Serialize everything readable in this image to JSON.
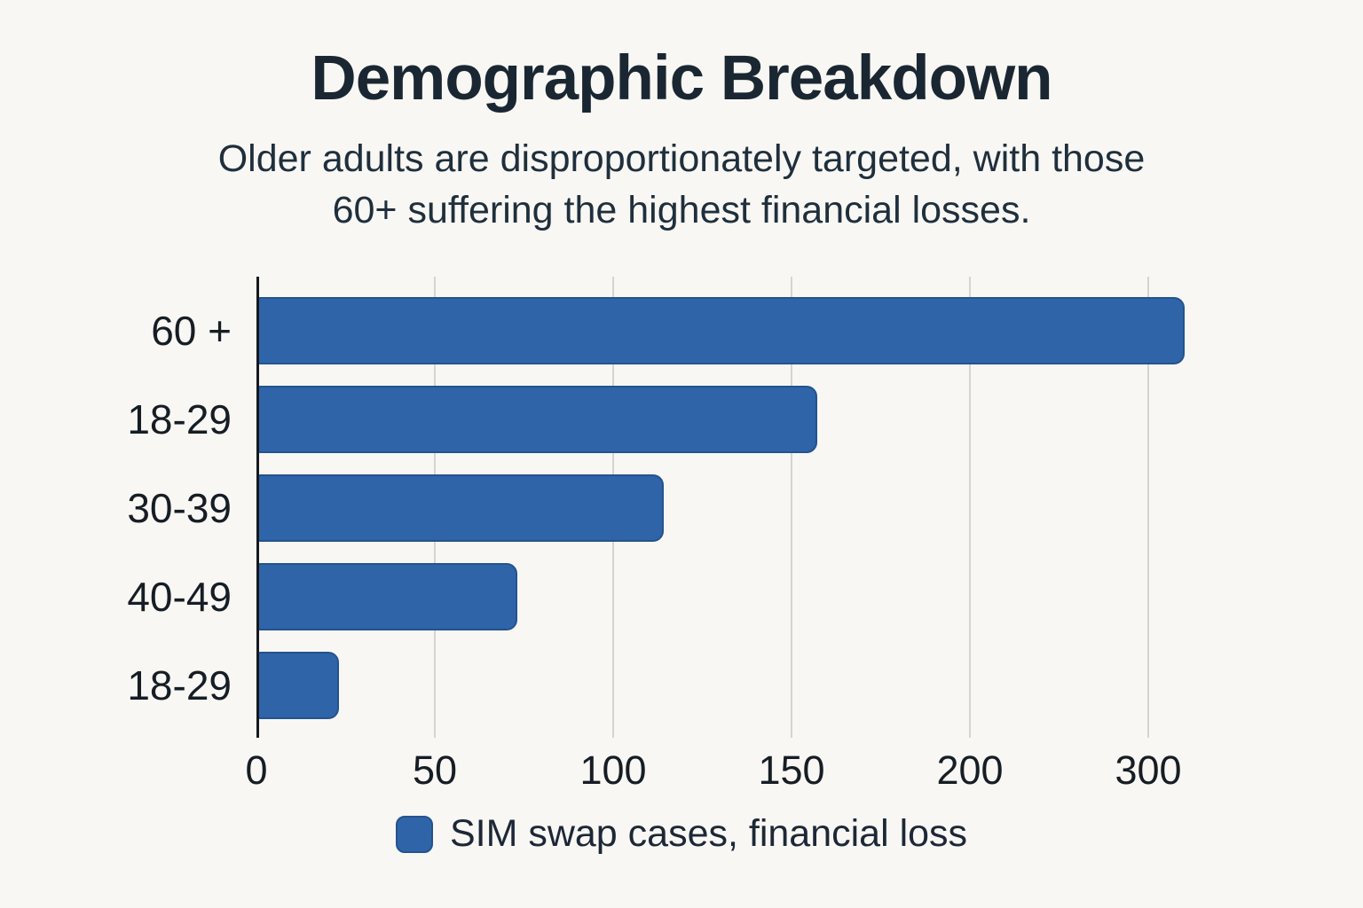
{
  "page": {
    "background_color": "#f8f7f4"
  },
  "header": {
    "title": "Demographic Breakdown",
    "subtitle_lines": [
      "Older adults are disproportionately targeted, with those",
      "60+ suffering the highest financial losses."
    ]
  },
  "legend": {
    "label": "SIM swap cases, financial loss",
    "swatch_color": "#2f64a8",
    "swatch_border_color": "#24538f"
  },
  "colors": {
    "bar_fill": "#2f64a8",
    "bar_border": "#24538f",
    "title_text": "#1a2732",
    "axis_text": "#161d24",
    "gridline": "#d5d4d1",
    "axis_line": "#15191d"
  },
  "chart_data": {
    "type": "bar",
    "orientation": "horizontal",
    "title": "Demographic Breakdown",
    "categories": [
      "60 +",
      "18-29",
      "30-39",
      "40-49",
      "18-29"
    ],
    "values": [
      320,
      157,
      114,
      73,
      23
    ],
    "series_name": "SIM swap cases, financial loss",
    "x_tick_labels": [
      "0",
      "50",
      "100",
      "150",
      "200",
      "300"
    ],
    "x_tick_values": [
      0,
      50,
      100,
      150,
      200,
      300
    ],
    "axis_note": "tick labels as printed on the image; gridline spacing is uniform even though the last label jumps from 200 to 300",
    "grid": "vertical-gridlines-on",
    "legend_position": "bottom",
    "bar_color": "#2f64a8"
  }
}
